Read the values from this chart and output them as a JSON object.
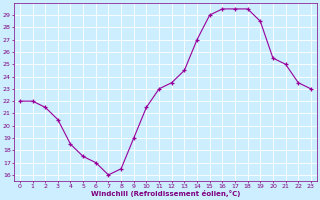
{
  "x": [
    0,
    1,
    2,
    3,
    4,
    5,
    6,
    7,
    8,
    9,
    10,
    11,
    12,
    13,
    14,
    15,
    16,
    17,
    18,
    19,
    20,
    21,
    22,
    23
  ],
  "y": [
    22,
    22,
    21.5,
    20.5,
    18.5,
    17.5,
    17,
    16,
    16.5,
    19,
    21.5,
    23,
    23.5,
    24.5,
    27,
    29,
    29.5,
    29.5,
    29.5,
    28.5,
    25.5,
    25,
    23.5,
    23
  ],
  "line_color": "#990099",
  "marker": "+",
  "marker_size": 3,
  "xlabel": "Windchill (Refroidissement éolien,°C)",
  "xlim": [
    -0.5,
    23.5
  ],
  "ylim": [
    15.5,
    30
  ],
  "yticks": [
    16,
    17,
    18,
    19,
    20,
    21,
    22,
    23,
    24,
    25,
    26,
    27,
    28,
    29
  ],
  "xticks": [
    0,
    1,
    2,
    3,
    4,
    5,
    6,
    7,
    8,
    9,
    10,
    11,
    12,
    13,
    14,
    15,
    16,
    17,
    18,
    19,
    20,
    21,
    22,
    23
  ],
  "bg_color": "#cceeff",
  "grid_color": "#ffffff",
  "tick_color": "#800080",
  "label_color": "#800080"
}
